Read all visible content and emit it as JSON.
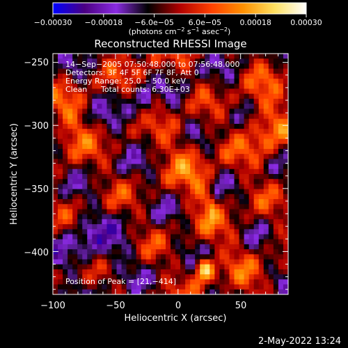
{
  "colors": {
    "background": "#000000",
    "foreground": "#ffffff",
    "colormap_stops": [
      "#0000ff",
      "#4b0082",
      "#8a2be2",
      "#000000",
      "#b00000",
      "#ff4000",
      "#ff9000",
      "#ffe060",
      "#ffffff"
    ]
  },
  "footer": {
    "timestamp": "2-May-2022 13:24"
  },
  "chart_data": {
    "type": "heatmap",
    "title": "Reconstructed RHESSI Image",
    "xlabel": "Heliocentric X (arcsec)",
    "ylabel": "Heliocentric Y (arcsec)",
    "xlim": [
      -100,
      88
    ],
    "ylim": [
      -434,
      -243
    ],
    "xticks": [
      -100,
      -50,
      0,
      50
    ],
    "xtick_labels": [
      "−100",
      "−50",
      "0",
      "50"
    ],
    "yticks": [
      -400,
      -350,
      -300,
      -250
    ],
    "ytick_labels": [
      "−400",
      "−350",
      "−300",
      "−250"
    ],
    "colorbar": {
      "min": -0.0003,
      "max": 0.0003,
      "tick_labels": [
        "−0.00030",
        "−0.00018",
        "−6.0e−05",
        "6.0e−05",
        "0.00018",
        "0.00030"
      ],
      "unit_label": "(photons cm",
      "unit_sup1": "−2",
      "unit_mid": " s",
      "unit_sup2": "−1",
      "unit_mid2": " asec",
      "unit_sup3": "−2",
      "unit_end": ")"
    },
    "annotations": {
      "line1": "14−Sep−2005 07:50:48.000 to 07:56:48.000",
      "line2": "Detectors: 3F 4F 5F 6F 7F 8F, Att 0",
      "line3": "Energy Range: 25.0 − 50.0 keV",
      "line4_a": "Clean",
      "line4_b": "Total counts: 6.30E+03",
      "peak": "Position of Peak = [21,−414]"
    },
    "peak_position": [
      21,
      -414
    ],
    "grid": false
  }
}
